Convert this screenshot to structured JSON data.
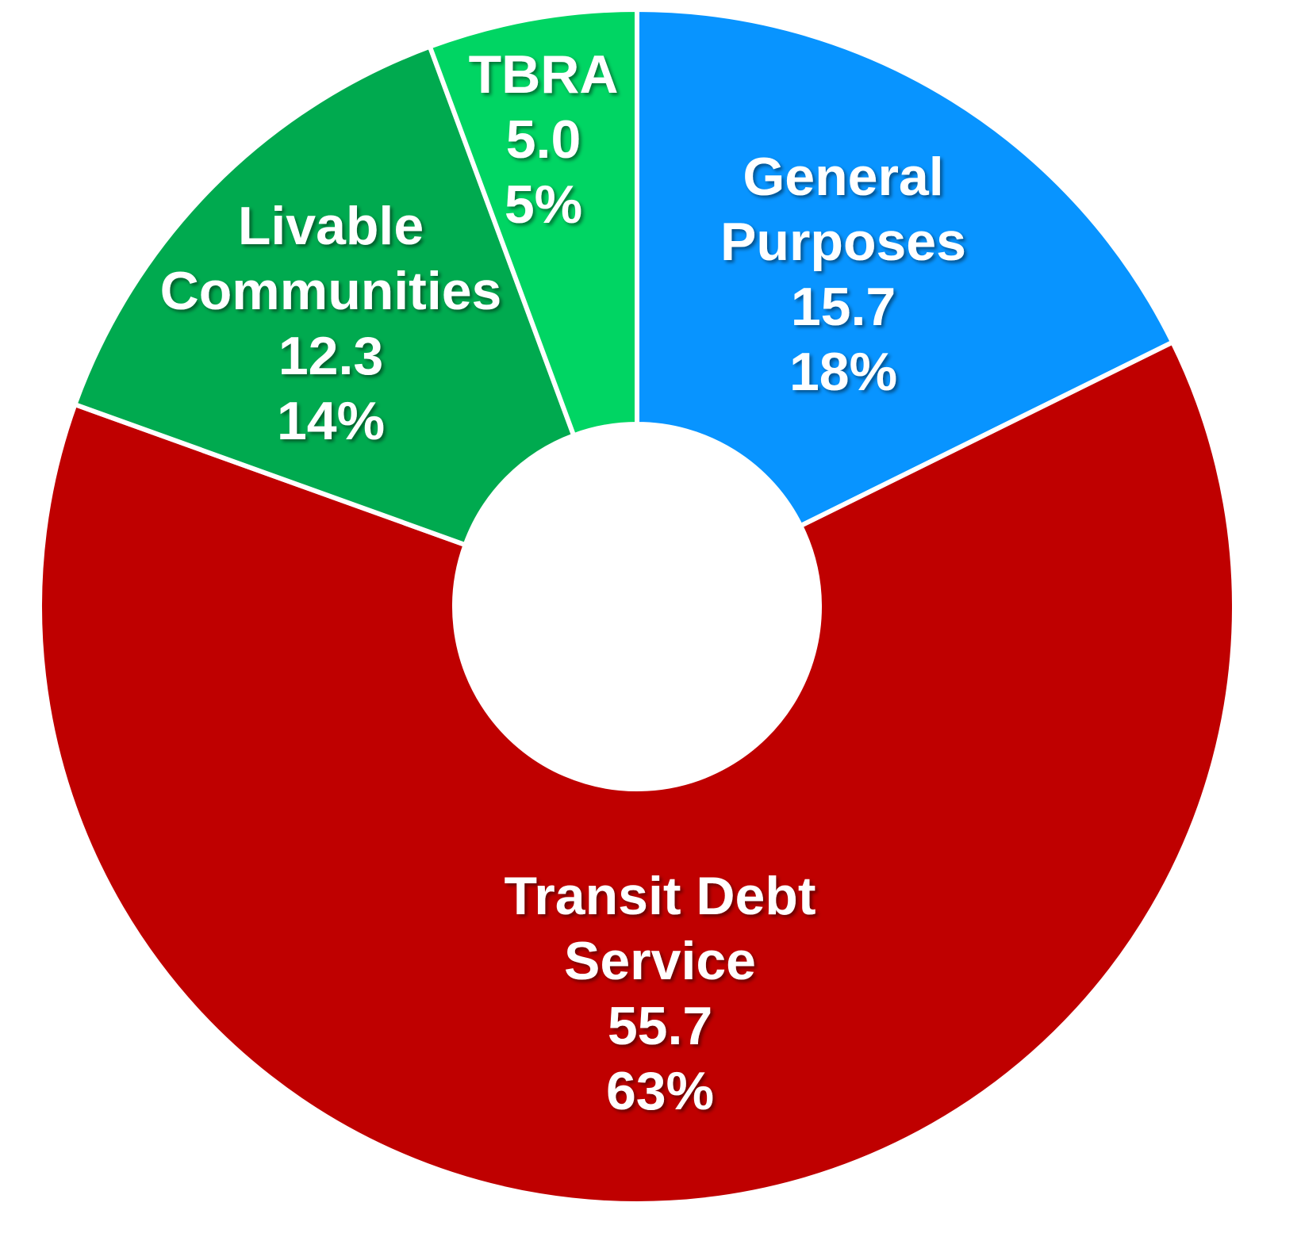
{
  "chart_data": {
    "type": "donut",
    "categories": [
      [
        "General",
        "Purposes"
      ],
      [
        "Transit Debt",
        "Service"
      ],
      [
        "Livable",
        "Communities"
      ],
      [
        "TBRA"
      ]
    ],
    "values": [
      15.7,
      55.7,
      12.3,
      5.0
    ],
    "value_labels": [
      "15.7",
      "55.7",
      "12.3",
      "5.0"
    ],
    "percents": [
      18,
      63,
      14,
      5
    ],
    "percent_labels": [
      "18%",
      "63%",
      "14%",
      "5%"
    ],
    "colors": [
      "#0894ff",
      "#bf0000",
      "#00aa4f",
      "#00d563"
    ]
  }
}
